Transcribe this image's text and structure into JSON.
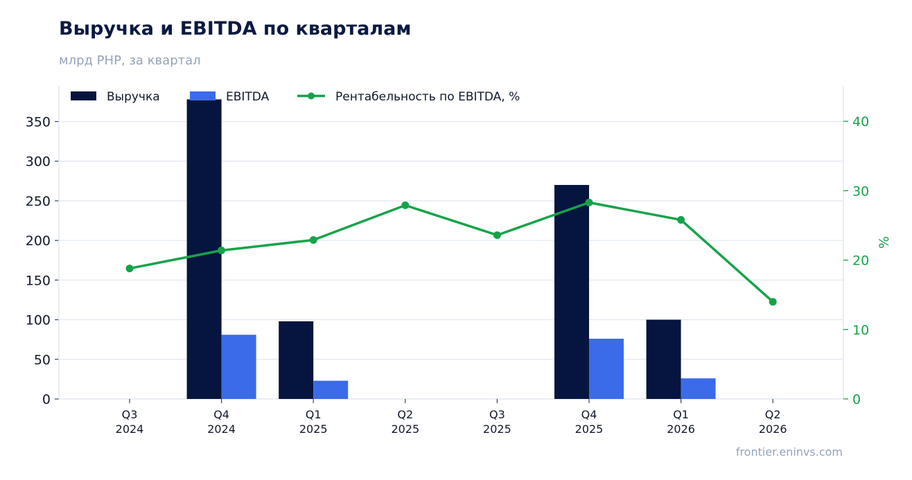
{
  "header": {
    "title": "Выручка и EBITDA по кварталам",
    "subtitle": "млрд РНР, за квартал"
  },
  "footer": {
    "source": "frontier.eninvs.com"
  },
  "chart_data": {
    "type": "bar",
    "categories": [
      [
        "Q3",
        "2024"
      ],
      [
        "Q4",
        "2024"
      ],
      [
        "Q1",
        "2025"
      ],
      [
        "Q2",
        "2025"
      ],
      [
        "Q3",
        "2025"
      ],
      [
        "Q4",
        "2025"
      ],
      [
        "Q1",
        "2026"
      ],
      [
        "Q2",
        "2026"
      ]
    ],
    "series": [
      {
        "name": "Выручка",
        "kind": "bar",
        "axis": "left",
        "color": "#06153f",
        "values": [
          null,
          378,
          98,
          null,
          null,
          270,
          100,
          null
        ]
      },
      {
        "name": "EBITDA",
        "kind": "bar",
        "axis": "left",
        "color": "#3b6be8",
        "values": [
          null,
          81,
          23,
          null,
          null,
          76,
          26,
          null
        ]
      },
      {
        "name": "Рентабельность по EBITDA, %",
        "kind": "line",
        "axis": "right",
        "color": "#16a34a",
        "values": [
          18.8,
          21.4,
          22.9,
          27.9,
          23.6,
          28.3,
          25.8,
          14.0
        ]
      }
    ],
    "y_left": {
      "label": "",
      "ylim": [
        0,
        395
      ],
      "ticks": [
        0,
        50,
        100,
        150,
        200,
        250,
        300,
        350
      ]
    },
    "y_right": {
      "label": "%",
      "ylim": [
        0,
        45.1
      ],
      "ticks": [
        0,
        10,
        20,
        30,
        40
      ],
      "color": "#16a34a"
    },
    "grid": true,
    "legend_position": "top-left"
  }
}
